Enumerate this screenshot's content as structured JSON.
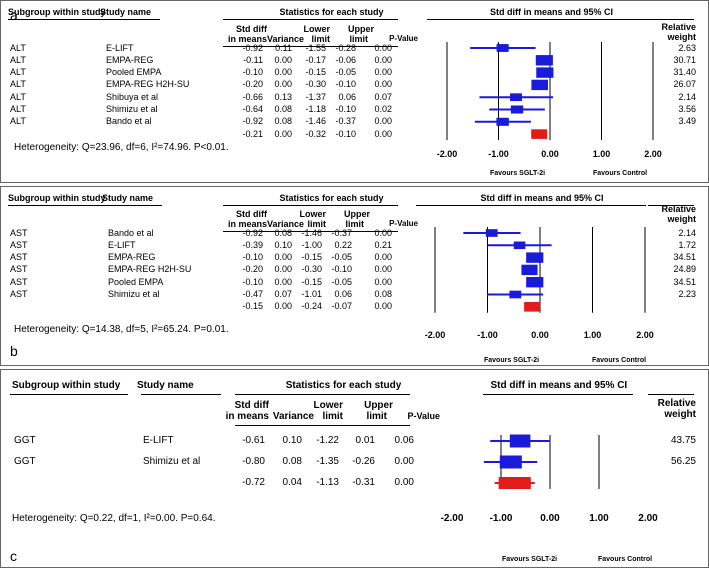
{
  "headers": {
    "subgroup": "Subgroup within study",
    "study": "Study name",
    "stats": "Statistics for each study",
    "plot": "Std diff in means and 95% CI",
    "std1": "Std diff",
    "std2": "in means",
    "variance": "Variance",
    "lower1": "Lower",
    "lower2": "limit",
    "upper1": "Upper",
    "upper2": "limit",
    "pvalue": "P-Value",
    "rel1": "Relative",
    "rel2": "weight"
  },
  "chart_data": [
    {
      "type": "forest",
      "label": "a",
      "xlim": [
        -2,
        2
      ],
      "ticks": [
        "-2.00",
        "-1.00",
        "0.00",
        "1.00",
        "2.00"
      ],
      "favours_left": "Favours SGLT-2i",
      "favours_right": "Favours Control",
      "heterogeneity": "Heterogeneity: Q=23.96, df=6, I²=74.96. P<0.01.",
      "rows": [
        {
          "group": "ALT",
          "study": "E-LIFT",
          "smd": "-0.92",
          "var": "0.11",
          "lower": "-1.55",
          "upper": "-0.28",
          "p": "0.00",
          "weight": "2.63",
          "est": -0.92,
          "lo": -1.55,
          "hi": -0.28,
          "w": 2.63
        },
        {
          "group": "ALT",
          "study": "EMPA-REG",
          "smd": "-0.11",
          "var": "0.00",
          "lower": "-0.17",
          "upper": "-0.06",
          "p": "0.00",
          "weight": "30.71",
          "est": -0.11,
          "lo": -0.17,
          "hi": -0.06,
          "w": 30.71
        },
        {
          "group": "ALT",
          "study": "Pooled EMPA",
          "smd": "-0.10",
          "var": "0.00",
          "lower": "-0.15",
          "upper": "-0.05",
          "p": "0.00",
          "weight": "31.40",
          "est": -0.1,
          "lo": -0.15,
          "hi": -0.05,
          "w": 31.4
        },
        {
          "group": "ALT",
          "study": "EMPA-REG H2H-SU",
          "smd": "-0.20",
          "var": "0.00",
          "lower": "-0.30",
          "upper": "-0.10",
          "p": "0.00",
          "weight": "26.07",
          "est": -0.2,
          "lo": -0.3,
          "hi": -0.1,
          "w": 26.07
        },
        {
          "group": "ALT",
          "study": "Shibuya et al",
          "smd": "-0.66",
          "var": "0.13",
          "lower": "-1.37",
          "upper": "0.06",
          "p": "0.07",
          "weight": "2.14",
          "est": -0.66,
          "lo": -1.37,
          "hi": 0.06,
          "w": 2.14
        },
        {
          "group": "ALT",
          "study": "Shimizu et al",
          "smd": "-0.64",
          "var": "0.08",
          "lower": "-1.18",
          "upper": "-0.10",
          "p": "0.02",
          "weight": "3.56",
          "est": -0.64,
          "lo": -1.18,
          "hi": -0.1,
          "w": 3.56
        },
        {
          "group": "ALT",
          "study": "Bando et al",
          "smd": "-0.92",
          "var": "0.08",
          "lower": "-1.46",
          "upper": "-0.37",
          "p": "0.00",
          "weight": "3.49",
          "est": -0.92,
          "lo": -1.46,
          "hi": -0.37,
          "w": 3.49
        }
      ],
      "summary": {
        "smd": "-0.21",
        "var": "0.00",
        "lower": "-0.32",
        "upper": "-0.10",
        "p": "0.00",
        "est": -0.21,
        "lo": -0.32,
        "hi": -0.1
      }
    },
    {
      "type": "forest",
      "label": "b",
      "xlim": [
        -2,
        2
      ],
      "ticks": [
        "-2.00",
        "-1.00",
        "0.00",
        "1.00",
        "2.00"
      ],
      "favours_left": "Favours SGLT-2i",
      "favours_right": "Favours Control",
      "heterogeneity": "Heterogeneity: Q=14.38, df=5, I²=65.24. P=0.01.",
      "rows": [
        {
          "group": "AST",
          "study": "Bando et al",
          "smd": "-0.92",
          "var": "0.08",
          "lower": "-1.46",
          "upper": "-0.37",
          "p": "0.00",
          "weight": "2.14",
          "est": -0.92,
          "lo": -1.46,
          "hi": -0.37,
          "w": 2.14
        },
        {
          "group": "AST",
          "study": "E-LIFT",
          "smd": "-0.39",
          "var": "0.10",
          "lower": "-1.00",
          "upper": "0.22",
          "p": "0.21",
          "weight": "1.72",
          "est": -0.39,
          "lo": -1.0,
          "hi": 0.22,
          "w": 1.72
        },
        {
          "group": "AST",
          "study": "EMPA-REG",
          "smd": "-0.10",
          "var": "0.00",
          "lower": "-0.15",
          "upper": "-0.05",
          "p": "0.00",
          "weight": "34.51",
          "est": -0.1,
          "lo": -0.15,
          "hi": -0.05,
          "w": 34.51
        },
        {
          "group": "AST",
          "study": "EMPA-REG H2H-SU",
          "smd": "-0.20",
          "var": "0.00",
          "lower": "-0.30",
          "upper": "-0.10",
          "p": "0.00",
          "weight": "24.89",
          "est": -0.2,
          "lo": -0.3,
          "hi": -0.1,
          "w": 24.89
        },
        {
          "group": "AST",
          "study": "Pooled EMPA",
          "smd": "-0.10",
          "var": "0.00",
          "lower": "-0.15",
          "upper": "-0.05",
          "p": "0.00",
          "weight": "34.51",
          "est": -0.1,
          "lo": -0.15,
          "hi": -0.05,
          "w": 34.51
        },
        {
          "group": "AST",
          "study": "Shimizu et al",
          "smd": "-0.47",
          "var": "0.07",
          "lower": "-1.01",
          "upper": "0.06",
          "p": "0.08",
          "weight": "2.23",
          "est": -0.47,
          "lo": -1.01,
          "hi": 0.06,
          "w": 2.23
        }
      ],
      "summary": {
        "smd": "-0.15",
        "var": "0.00",
        "lower": "-0.24",
        "upper": "-0.07",
        "p": "0.00",
        "est": -0.15,
        "lo": -0.24,
        "hi": -0.07
      }
    },
    {
      "type": "forest",
      "label": "c",
      "xlim": [
        -2,
        2
      ],
      "ticks": [
        "-2.00",
        "-1.00",
        "0.00",
        "1.00",
        "2.00"
      ],
      "favours_left": "Favours SGLT-2i",
      "favours_right": "Favours Control",
      "heterogeneity": "Heterogeneity: Q=0.22, df=1, I²=0.00. P=0.64.",
      "rows": [
        {
          "group": "GGT",
          "study": "E-LIFT",
          "smd": "-0.61",
          "var": "0.10",
          "lower": "-1.22",
          "upper": "0.01",
          "p": "0.06",
          "weight": "43.75",
          "est": -0.61,
          "lo": -1.22,
          "hi": 0.01,
          "w": 43.75
        },
        {
          "group": "GGT",
          "study": "Shimizu et al",
          "smd": "-0.80",
          "var": "0.08",
          "lower": "-1.35",
          "upper": "-0.26",
          "p": "0.00",
          "weight": "56.25",
          "est": -0.8,
          "lo": -1.35,
          "hi": -0.26,
          "w": 56.25
        }
      ],
      "summary": {
        "smd": "-0.72",
        "var": "0.04",
        "lower": "-1.13",
        "upper": "-0.31",
        "p": "0.00",
        "est": -0.72,
        "lo": -1.13,
        "hi": -0.31
      }
    }
  ]
}
